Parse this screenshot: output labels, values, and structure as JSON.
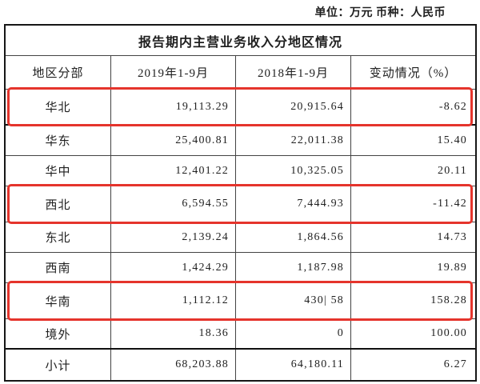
{
  "meta": {
    "unit_label": "单位：万元 币种：人民币"
  },
  "table": {
    "title": "报告期内主营业务收入分地区情况",
    "columns": [
      "地区分部",
      "2019年1-9月",
      "2018年1-9月",
      "变动情况（%）"
    ],
    "highlight_color": "#e5342c",
    "rows": [
      {
        "region": "华北",
        "y2019": "19,113.29",
        "y2018": "20,915.64",
        "change": "-8.62",
        "highlighted": true
      },
      {
        "region": "华东",
        "y2019": "25,400.81",
        "y2018": "22,011.38",
        "change": "15.40",
        "highlighted": false
      },
      {
        "region": "华中",
        "y2019": "12,401.22",
        "y2018": "10,325.05",
        "change": "20.11",
        "highlighted": false
      },
      {
        "region": "西北",
        "y2019": "6,594.55",
        "y2018": "7,444.93",
        "change": "-11.42",
        "highlighted": true
      },
      {
        "region": "东北",
        "y2019": "2,139.24",
        "y2018": "1,864.56",
        "change": "14.73",
        "highlighted": false
      },
      {
        "region": "西南",
        "y2019": "1,424.29",
        "y2018": "1,187.98",
        "change": "19.89",
        "highlighted": false
      },
      {
        "region": "华南",
        "y2019": "1,112.12",
        "y2018": "430| 58",
        "change": "158.28",
        "highlighted": true
      },
      {
        "region": "境外",
        "y2019": "18.36",
        "y2018": "0",
        "change": "100.00",
        "highlighted": false
      },
      {
        "region": "小计",
        "y2019": "68,203.88",
        "y2018": "64,180.11",
        "change": "6.27",
        "highlighted": false
      }
    ]
  }
}
